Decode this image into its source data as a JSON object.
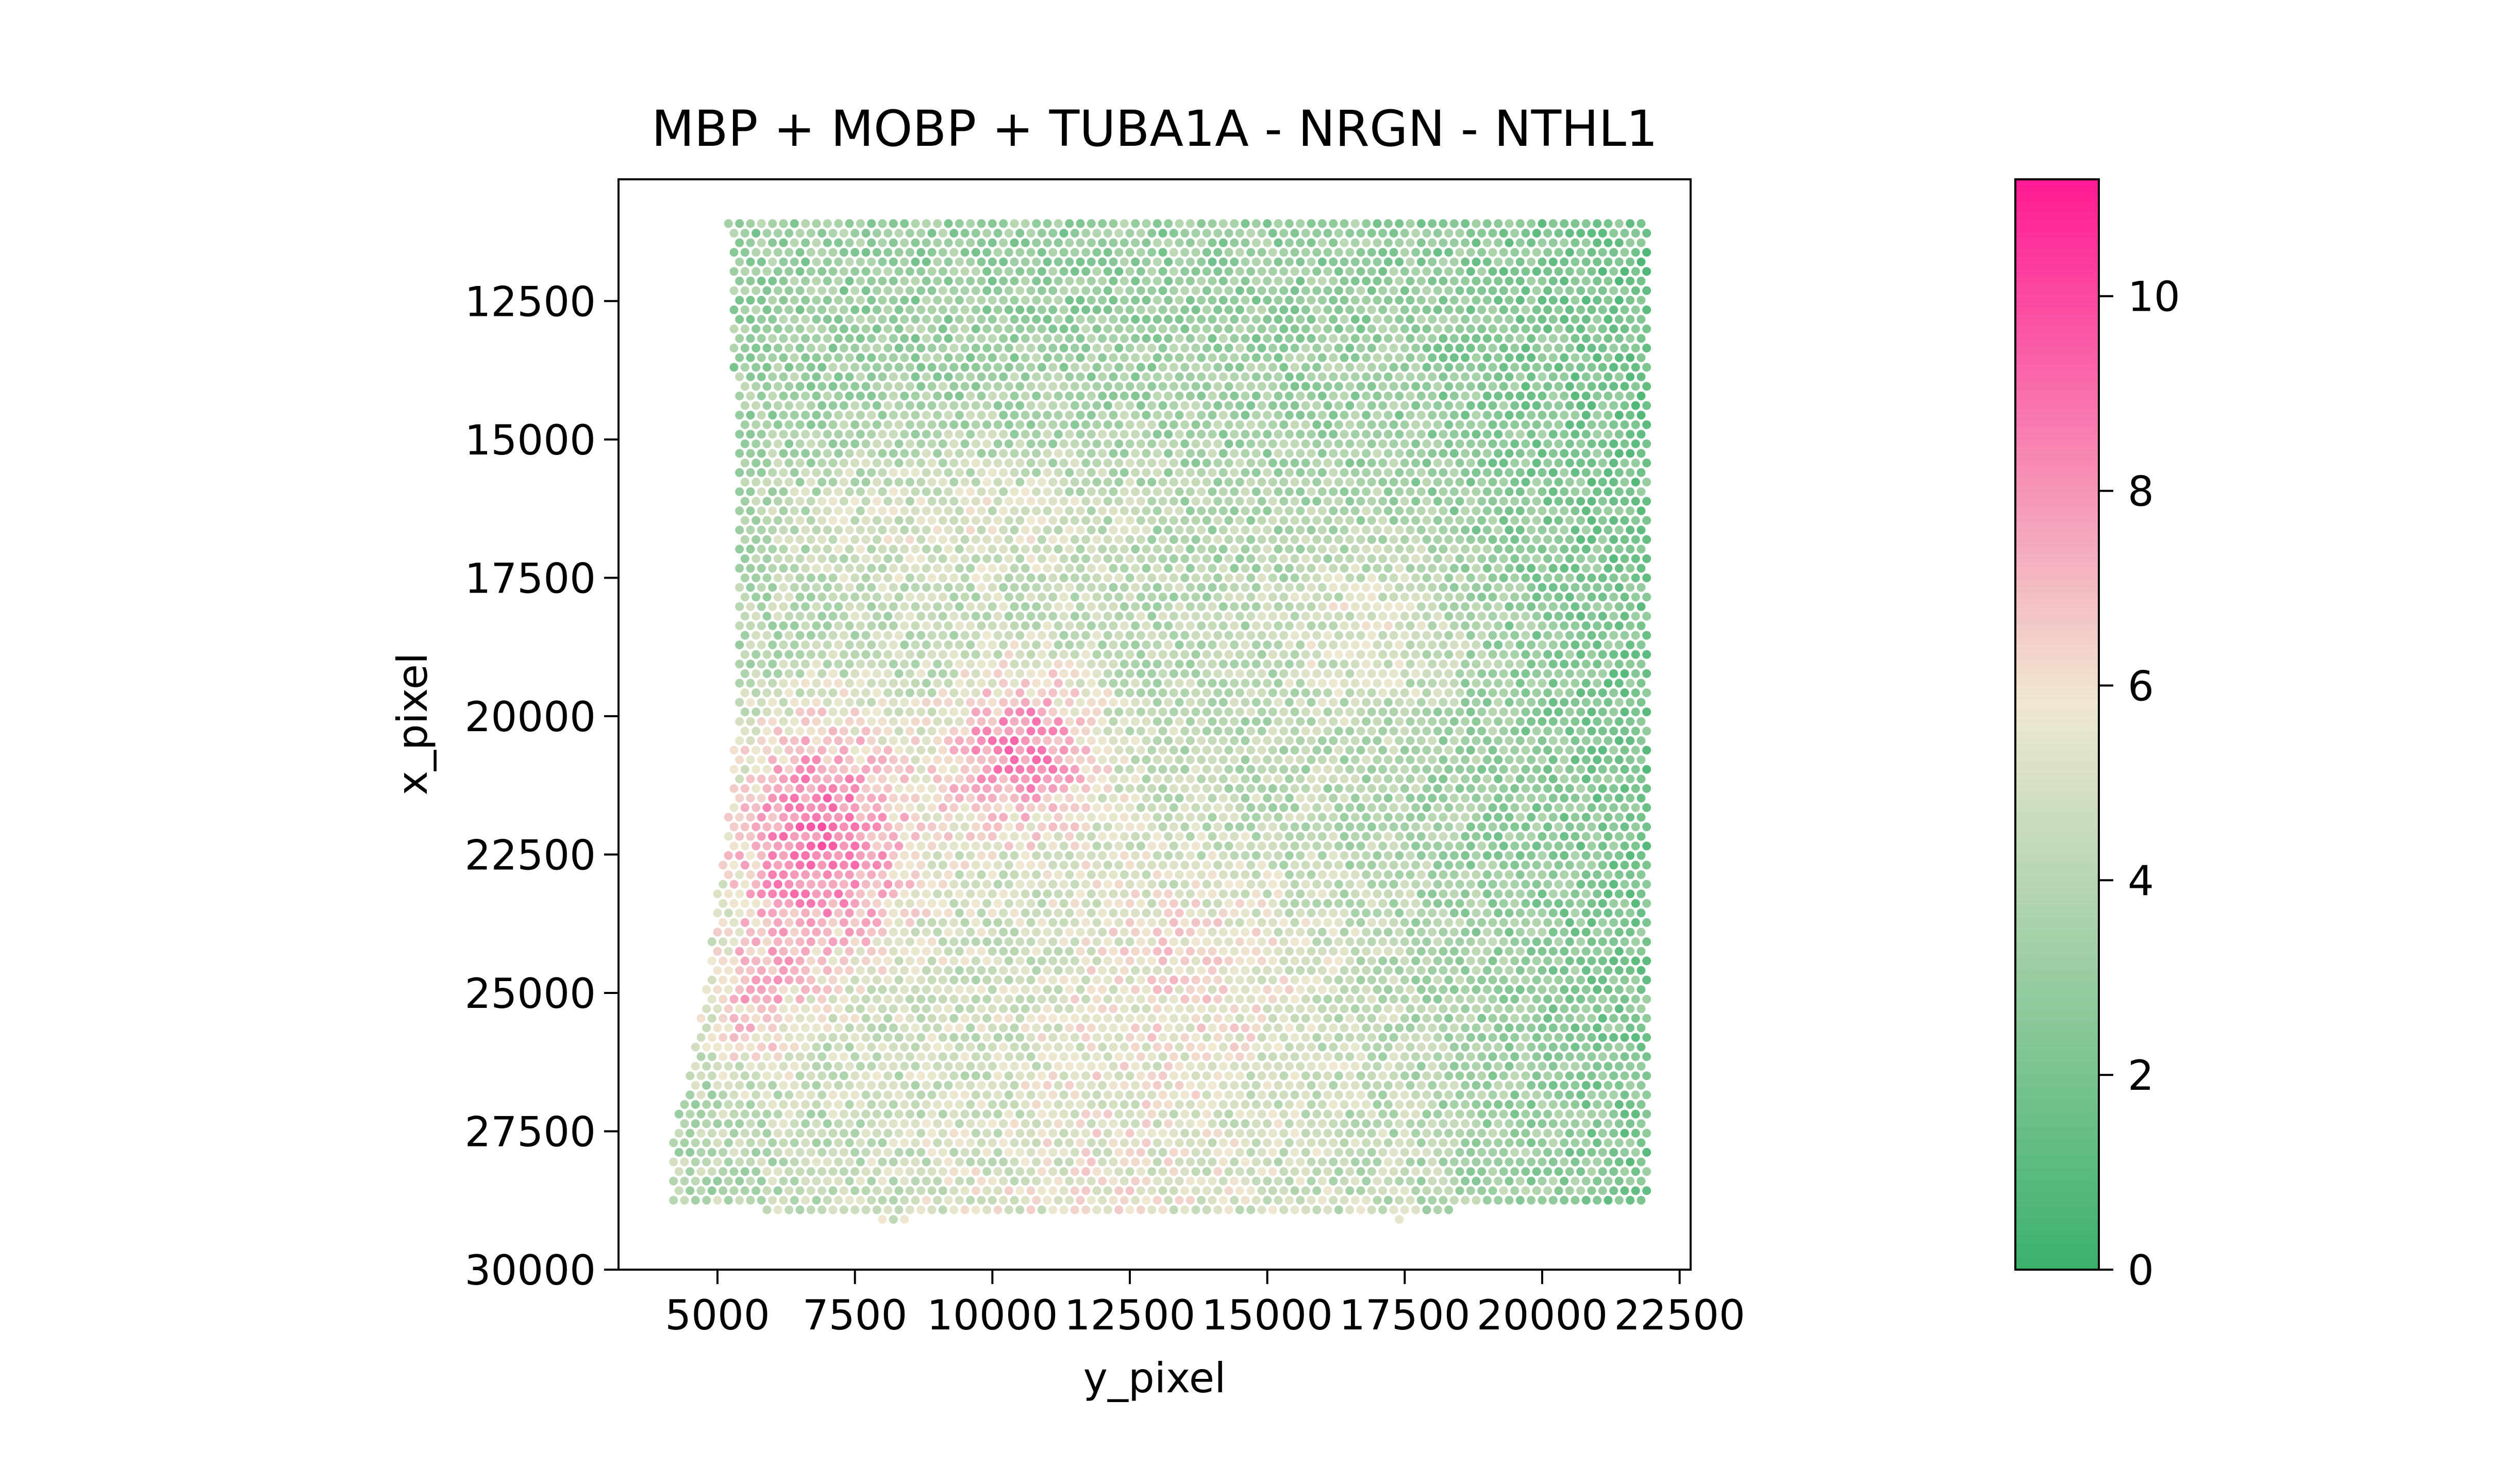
{
  "chart_data": {
    "type": "scatter",
    "title": "MBP + MOBP + TUBA1A - NRGN - NTHL1",
    "xlabel": "y_pixel",
    "ylabel": "x_pixel",
    "xlim": [
      3200,
      22700
    ],
    "ylim": [
      30000,
      10300
    ],
    "y_inverted": true,
    "xticks": [
      5000,
      7500,
      10000,
      12500,
      15000,
      17500,
      20000,
      22500
    ],
    "xtick_labels": [
      "5000",
      "7500",
      "10000",
      "12500",
      "15000",
      "17500",
      "20000",
      "22500"
    ],
    "yticks": [
      12500,
      15000,
      17500,
      20000,
      22500,
      25000,
      27500,
      30000
    ],
    "ytick_labels": [
      "12500",
      "15000",
      "17500",
      "20000",
      "22500",
      "25000",
      "27500",
      "30000"
    ],
    "grid": false,
    "point_grid": {
      "x_start": 5200,
      "x_end": 21900,
      "x_step": 200,
      "y_start": 11100,
      "y_end": 29100,
      "y_step": 173
    },
    "tissue_outline_left_edge": [
      {
        "y": 11100,
        "x": 5200
      },
      {
        "y": 16800,
        "x": 5400
      },
      {
        "y": 19600,
        "x": 5400
      },
      {
        "y": 21600,
        "x": 5200
      },
      {
        "y": 24800,
        "x": 4800
      },
      {
        "y": 26300,
        "x": 4500
      },
      {
        "y": 27600,
        "x": 4200
      },
      {
        "y": 29100,
        "x": 4200
      }
    ],
    "tissue_outline_right_edge": [
      {
        "y": 11100,
        "x": 21900
      },
      {
        "y": 28400,
        "x": 21900
      },
      {
        "y": 29000,
        "x": 21900
      }
    ],
    "tissue_bottom_edge": [
      {
        "x": 4200,
        "y": 28800
      },
      {
        "x": 8000,
        "y": 29100
      },
      {
        "x": 15000,
        "y": 29000
      },
      {
        "x": 17500,
        "y": 29100
      },
      {
        "x": 19000,
        "y": 28800
      },
      {
        "x": 21900,
        "y": 28900
      }
    ],
    "hotspots": [
      {
        "x": 6800,
        "y": 22200,
        "sx": 1800,
        "sy": 2400,
        "amp": 5.0
      },
      {
        "x": 10500,
        "y": 20600,
        "sx": 1400,
        "sy": 1500,
        "amp": 4.2
      },
      {
        "x": 5600,
        "y": 25200,
        "sx": 900,
        "sy": 1300,
        "amp": 2.6
      },
      {
        "x": 17000,
        "y": 18500,
        "sx": 1800,
        "sy": 1600,
        "amp": 1.8
      },
      {
        "x": 9000,
        "y": 16500,
        "sx": 3500,
        "sy": 1500,
        "amp": 1.6
      },
      {
        "x": 14000,
        "y": 24500,
        "sx": 2200,
        "sy": 1800,
        "amp": 1.4
      }
    ],
    "colorbar": {
      "min": 0,
      "max": 11.2,
      "ticks": [
        0,
        2,
        4,
        6,
        8,
        10
      ],
      "tick_labels": [
        "0",
        "2",
        "4",
        "6",
        "8",
        "10"
      ],
      "colors": [
        "#3bb16b",
        "#f0e8d0",
        "#ff1a93"
      ],
      "color_stops": [
        0,
        0.52,
        1
      ]
    }
  }
}
